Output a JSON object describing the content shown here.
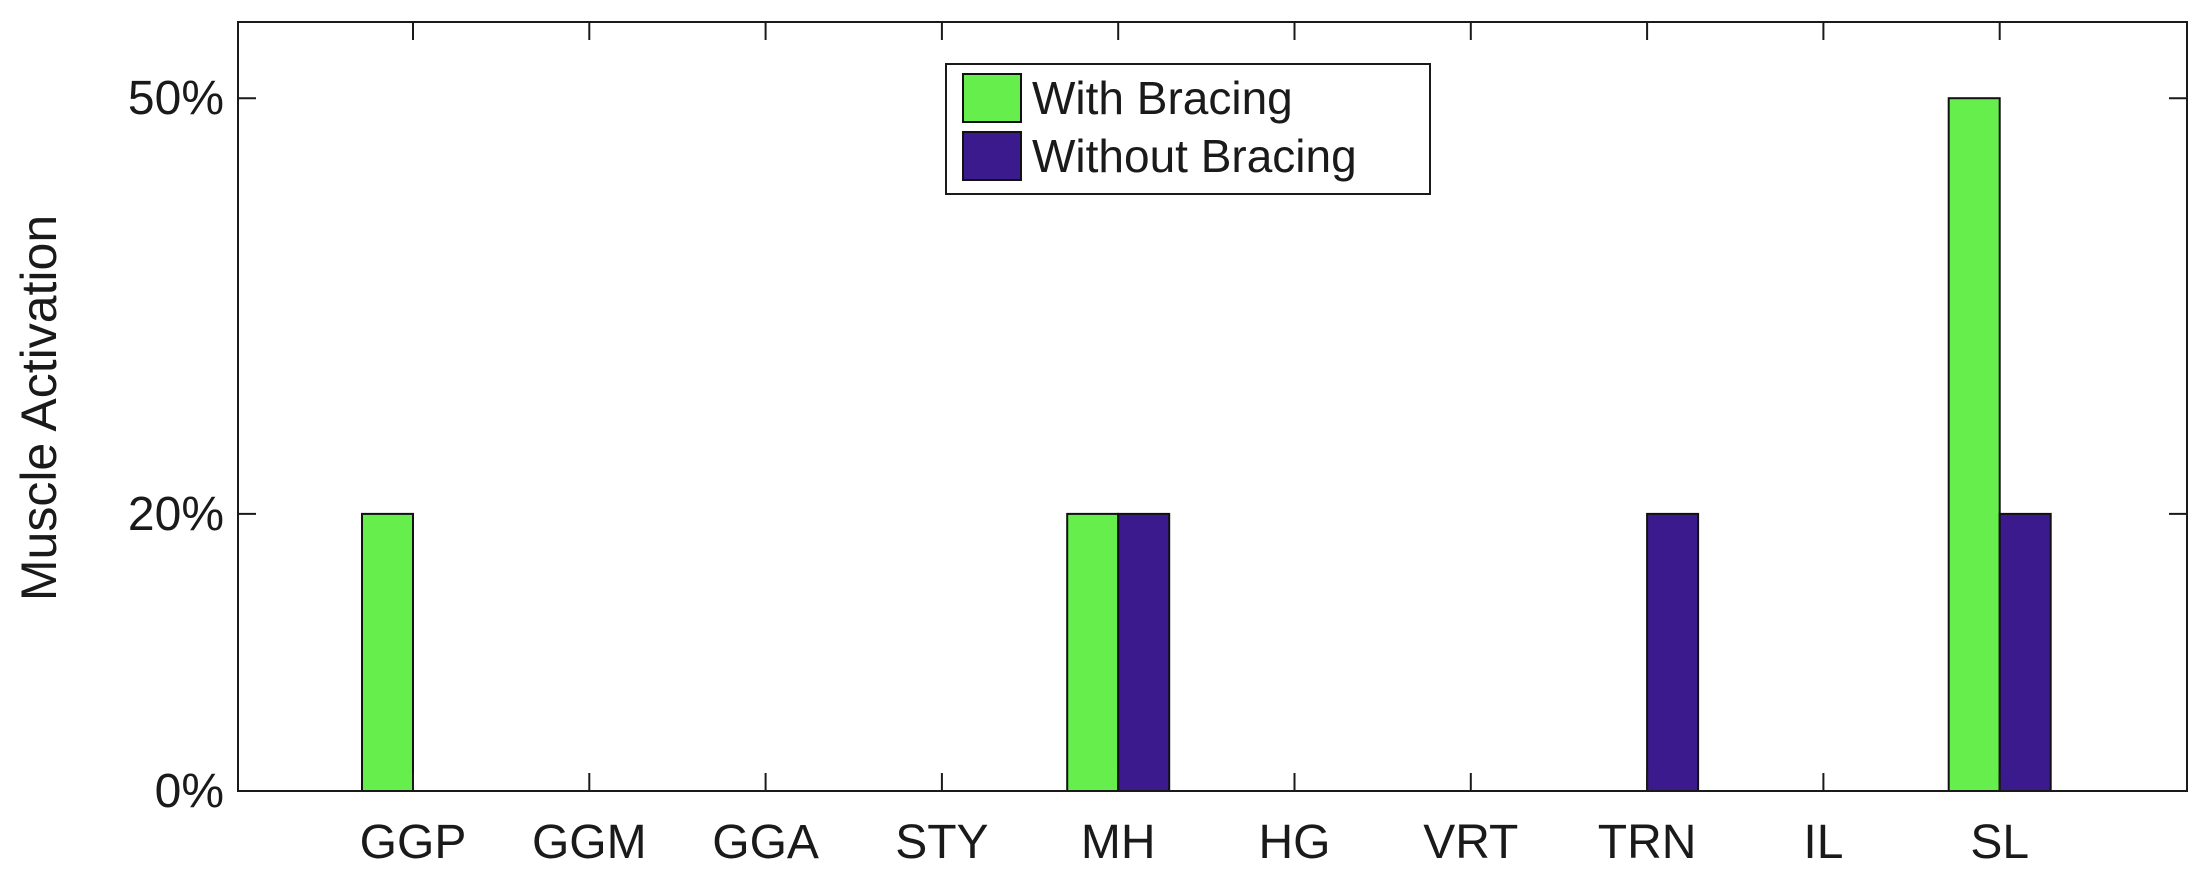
{
  "chart_data": {
    "type": "bar",
    "title": "",
    "xlabel": "",
    "ylabel": "Muscle Activation",
    "categories": [
      "GGP",
      "GGM",
      "GGA",
      "STY",
      "MH",
      "HG",
      "VRT",
      "TRN",
      "IL",
      "SL"
    ],
    "series": [
      {
        "name": "With Bracing",
        "color": "#66ee4c",
        "values": [
          0.2,
          0,
          0,
          0,
          0.2,
          0,
          0,
          0,
          0,
          0.5
        ]
      },
      {
        "name": "Without Bracing",
        "color": "#3a1a8c",
        "values": [
          0,
          0,
          0,
          0,
          0.2,
          0,
          0,
          0.2,
          0,
          0.2
        ]
      }
    ],
    "yticks": [
      0,
      0.2,
      0.5
    ],
    "ytick_labels": [
      "0%",
      "20%",
      "50%"
    ],
    "ylim": [
      0,
      0.555
    ],
    "grid": false,
    "legend_position": "top-center"
  }
}
